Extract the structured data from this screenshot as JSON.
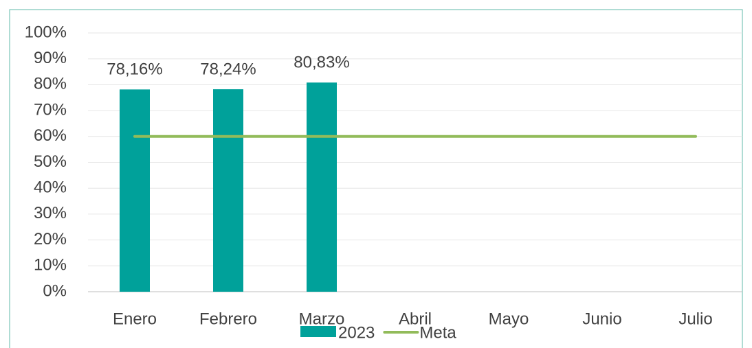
{
  "chart_data": {
    "type": "bar",
    "categories": [
      "Enero",
      "Febrero",
      "Marzo",
      "Abril",
      "Mayo",
      "Junio",
      "Julio"
    ],
    "series": [
      {
        "name": "2023",
        "type": "bar",
        "color": "#00a19a",
        "values": [
          78.16,
          78.24,
          80.83,
          null,
          null,
          null,
          null
        ],
        "value_labels": [
          "78,16%",
          "78,24%",
          "80,83%",
          null,
          null,
          null,
          null
        ]
      },
      {
        "name": "Meta",
        "type": "line",
        "color": "#92bb5a",
        "values": [
          60,
          60,
          60,
          60,
          60,
          60,
          60
        ]
      }
    ],
    "ylim": [
      0,
      100
    ],
    "yticks": [
      {
        "value": 0,
        "label": "0%"
      },
      {
        "value": 10,
        "label": "10%"
      },
      {
        "value": 20,
        "label": "20%"
      },
      {
        "value": 30,
        "label": "30%"
      },
      {
        "value": 40,
        "label": "40%"
      },
      {
        "value": 50,
        "label": "50%"
      },
      {
        "value": 60,
        "label": "60%"
      },
      {
        "value": 70,
        "label": "70%"
      },
      {
        "value": 80,
        "label": "80%"
      },
      {
        "value": 90,
        "label": "90%"
      },
      {
        "value": 100,
        "label": "100%"
      }
    ],
    "grid": true,
    "legend": "bottom"
  }
}
